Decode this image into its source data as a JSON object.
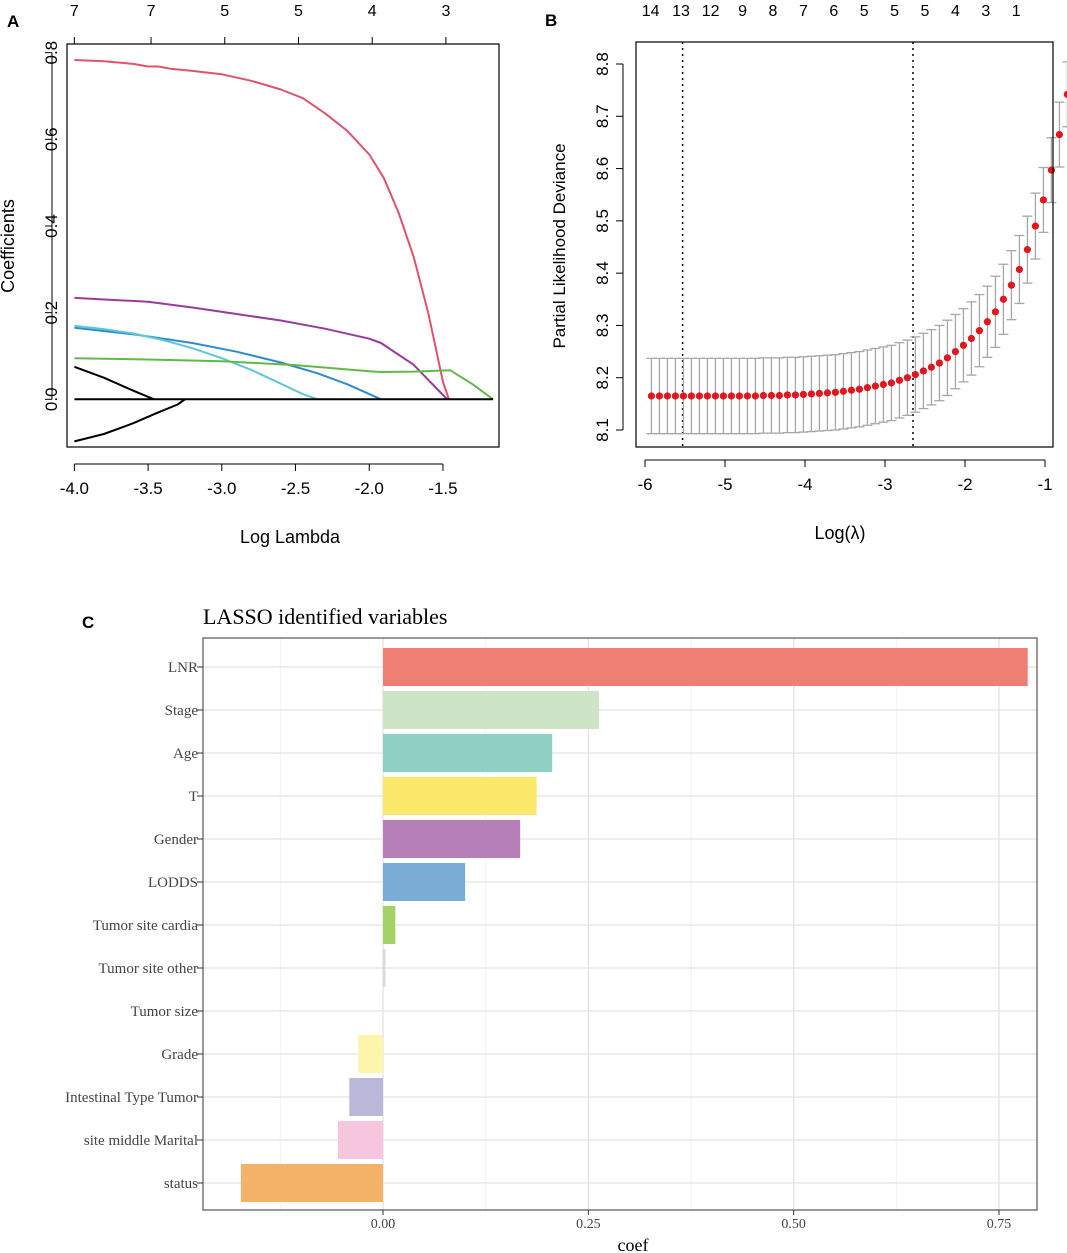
{
  "chart_data": [
    {
      "id": "A",
      "type": "line",
      "panel_label": "A",
      "xlabel": "Log Lambda",
      "ylabel": "Coefficients",
      "xlim": [
        -4.05,
        -1.12
      ],
      "ylim": [
        -0.11,
        0.82
      ],
      "x_ticks": [
        -4.0,
        -3.5,
        -3.0,
        -2.5,
        -2.0,
        -1.5
      ],
      "x_tick_labels": [
        "-4.0",
        "-3.5",
        "-3.0",
        "-2.5",
        "-2.0",
        "-1.5"
      ],
      "y_ticks": [
        0.0,
        0.2,
        0.4,
        0.6,
        0.8
      ],
      "y_tick_labels": [
        "0.0",
        "0.2",
        "0.4",
        "0.6",
        "0.8"
      ],
      "top_axis_ticks": [
        -4.0,
        -3.48,
        -2.98,
        -2.48,
        -1.98,
        -1.48
      ],
      "top_axis_labels": [
        "7",
        "7",
        "5",
        "5",
        "4",
        "3"
      ],
      "series": [
        {
          "name": "red",
          "color": "#df536b",
          "x": [
            -4.0,
            -3.8,
            -3.6,
            -3.5,
            -3.43,
            -3.35,
            -3.2,
            -3.0,
            -2.8,
            -2.6,
            -2.45,
            -2.3,
            -2.15,
            -2.0,
            -1.9,
            -1.8,
            -1.7,
            -1.6,
            -1.55,
            -1.5,
            -1.46
          ],
          "y": [
            0.783,
            0.78,
            0.774,
            0.768,
            0.768,
            0.763,
            0.758,
            0.75,
            0.735,
            0.715,
            0.695,
            0.66,
            0.62,
            0.565,
            0.51,
            0.43,
            0.33,
            0.2,
            0.12,
            0.04,
            0.0
          ]
        },
        {
          "name": "purple",
          "color": "#9b3a9b",
          "x": [
            -4.0,
            -3.5,
            -3.2,
            -2.9,
            -2.6,
            -2.3,
            -2.0,
            -1.92,
            -1.7,
            -1.5,
            -1.47
          ],
          "y": [
            0.234,
            0.225,
            0.212,
            0.197,
            0.182,
            0.163,
            0.14,
            0.13,
            0.08,
            0.01,
            0.0
          ]
        },
        {
          "name": "blue",
          "color": "#2e8bd0",
          "x": [
            -4.0,
            -3.6,
            -3.2,
            -2.9,
            -2.6,
            -2.35,
            -2.15,
            -2.0,
            -1.92
          ],
          "y": [
            0.165,
            0.15,
            0.13,
            0.11,
            0.085,
            0.06,
            0.035,
            0.012,
            0.0
          ]
        },
        {
          "name": "cyan",
          "color": "#5cc8d8",
          "x": [
            -4.0,
            -3.8,
            -3.6,
            -3.4,
            -3.2,
            -3.0,
            -2.8,
            -2.6,
            -2.45,
            -2.35
          ],
          "y": [
            0.17,
            0.162,
            0.152,
            0.137,
            0.118,
            0.095,
            0.068,
            0.036,
            0.012,
            0.0
          ]
        },
        {
          "name": "green",
          "color": "#61b94a",
          "x": [
            -4.0,
            -3.5,
            -3.0,
            -2.5,
            -2.0,
            -1.92,
            -1.7,
            -1.45,
            -1.3,
            -1.16
          ],
          "y": [
            0.095,
            0.092,
            0.088,
            0.079,
            0.065,
            0.063,
            0.064,
            0.067,
            0.035,
            0.0
          ]
        },
        {
          "name": "black-upper",
          "color": "#000000",
          "x": [
            -4.0,
            -3.8,
            -3.6,
            -3.46
          ],
          "y": [
            0.075,
            0.05,
            0.02,
            0.0
          ]
        },
        {
          "name": "black-lower",
          "color": "#000000",
          "x": [
            -4.0,
            -3.8,
            -3.6,
            -3.45,
            -3.3,
            -3.25
          ],
          "y": [
            -0.097,
            -0.08,
            -0.055,
            -0.033,
            -0.012,
            0.0
          ]
        },
        {
          "name": "zero",
          "color": "#000000",
          "x": [
            -4.0,
            -1.16
          ],
          "y": [
            0.0,
            0.0
          ]
        }
      ]
    },
    {
      "id": "B",
      "type": "scatter",
      "panel_label": "B",
      "xlabel": "Log(λ)",
      "ylabel": "Partial Likelihood Deviance",
      "xlim": [
        -6.0,
        -1.0
      ],
      "ylim": [
        8.08,
        8.83
      ],
      "x_ticks": [
        -6,
        -5,
        -4,
        -3,
        -2,
        -1
      ],
      "x_tick_labels": [
        "-6",
        "-5",
        "-4",
        "-3",
        "-2",
        "-1"
      ],
      "y_ticks": [
        8.1,
        8.2,
        8.3,
        8.4,
        8.5,
        8.6,
        8.7,
        8.8
      ],
      "y_tick_labels": [
        "8.1",
        "8.2",
        "8.3",
        "8.4",
        "8.5",
        "8.6",
        "8.7",
        "8.8"
      ],
      "top_axis_ticks": [
        -5.93,
        -5.55,
        -5.18,
        -4.78,
        -4.4,
        -4.02,
        -3.64,
        -3.26,
        -2.88,
        -2.5,
        -2.12,
        -1.74,
        -1.36
      ],
      "top_axis_labels": [
        "14",
        "13",
        "12",
        "9",
        "8",
        "7",
        "6",
        "5",
        "5",
        "5",
        "4",
        "3",
        "1"
      ],
      "vlines": [
        -5.53,
        -2.65
      ],
      "x_start": -5.92,
      "x_step": 0.1,
      "means": [
        8.165,
        8.165,
        8.165,
        8.165,
        8.165,
        8.165,
        8.165,
        8.165,
        8.165,
        8.165,
        8.165,
        8.165,
        8.165,
        8.165,
        8.166,
        8.166,
        8.166,
        8.167,
        8.167,
        8.168,
        8.169,
        8.17,
        8.171,
        8.172,
        8.174,
        8.176,
        8.178,
        8.181,
        8.184,
        8.187,
        8.19,
        8.195,
        8.2,
        8.206,
        8.213,
        8.22,
        8.228,
        8.238,
        8.25,
        8.262,
        8.275,
        8.29,
        8.307,
        8.326,
        8.35,
        8.377,
        8.407,
        8.445,
        8.49,
        8.54,
        8.597,
        8.665,
        8.742
      ],
      "errors": [
        0.072,
        0.072,
        0.072,
        0.072,
        0.072,
        0.072,
        0.072,
        0.072,
        0.072,
        0.072,
        0.072,
        0.072,
        0.072,
        0.072,
        0.072,
        0.072,
        0.072,
        0.072,
        0.072,
        0.072,
        0.072,
        0.072,
        0.072,
        0.072,
        0.072,
        0.072,
        0.072,
        0.072,
        0.072,
        0.072,
        0.072,
        0.072,
        0.072,
        0.072,
        0.072,
        0.072,
        0.072,
        0.072,
        0.071,
        0.07,
        0.07,
        0.069,
        0.068,
        0.068,
        0.067,
        0.066,
        0.065,
        0.064,
        0.063,
        0.062,
        0.062,
        0.062,
        0.062
      ],
      "point_color": "#e2161c",
      "errorbar_color": "#a7a7a7"
    },
    {
      "id": "C",
      "type": "bar",
      "panel_label": "C",
      "title": "LASSO identified variables",
      "xlabel": "coef",
      "ylabel": "",
      "xlim": [
        -0.22,
        0.82
      ],
      "x_ticks": [
        0.0,
        0.25,
        0.5,
        0.75
      ],
      "x_tick_labels": [
        "0.00",
        "0.25",
        "0.50",
        "0.75"
      ],
      "categories": [
        "LNR",
        "Stage",
        "Age",
        "T",
        "Gender",
        "LODDS",
        "Tumor site cardia",
        "Tumor site other",
        "Tumor size",
        "Grade",
        "Intestinal Type  Tumor",
        "site middle  Marital",
        "status"
      ],
      "values": [
        0.785,
        0.263,
        0.206,
        0.187,
        0.167,
        0.1,
        0.015,
        0.003,
        0.0,
        -0.03,
        -0.041,
        -0.055,
        -0.173
      ],
      "colors": [
        "#ef7f75",
        "#cde5c6",
        "#8fcfc4",
        "#fbe76a",
        "#b77fb8",
        "#7aadd6",
        "#a5d266",
        "#d9d9d9",
        "#ffffff",
        "#fdf5aa",
        "#bab8d9",
        "#f5c6dd",
        "#f4b168"
      ]
    }
  ]
}
